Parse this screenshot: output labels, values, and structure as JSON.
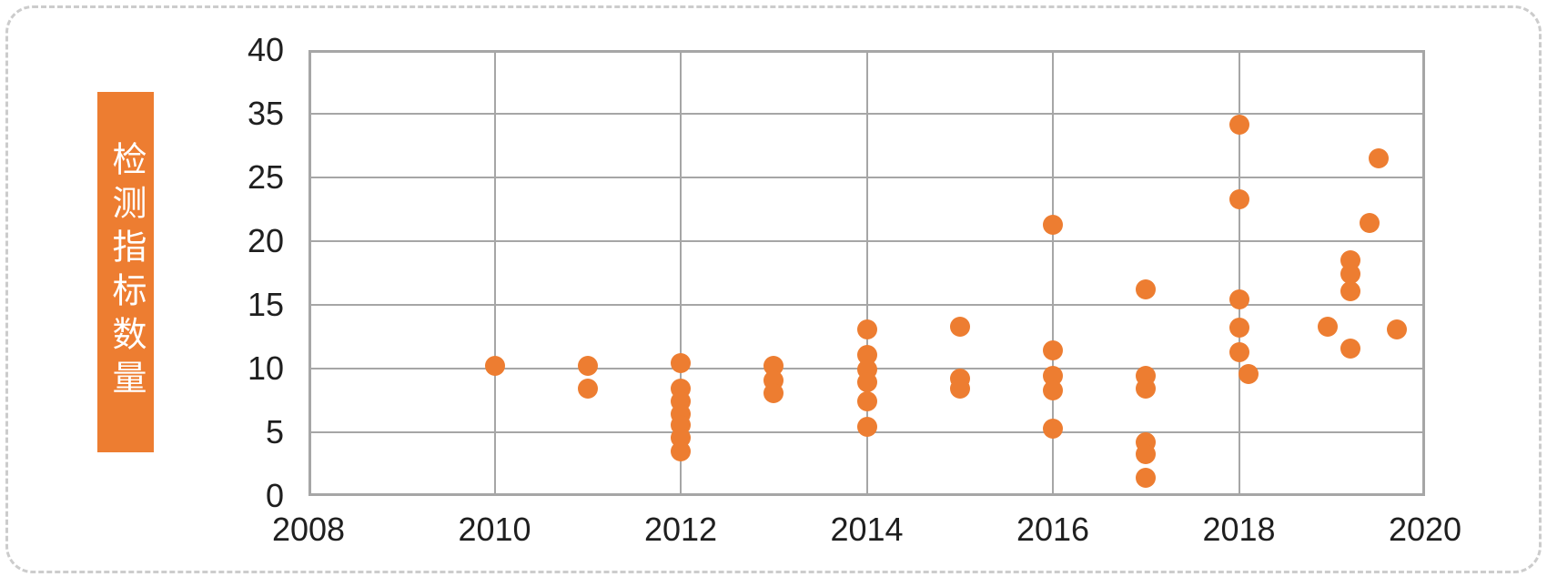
{
  "chart_data": {
    "type": "scatter",
    "title": "",
    "xlabel": "",
    "ylabel": "检测指标数量",
    "legend": null,
    "grid": true,
    "xlim": [
      2008,
      2020
    ],
    "x_tick_labels": [
      "2008",
      "2010",
      "2012",
      "2014",
      "2016",
      "2018",
      "2020"
    ],
    "x_tick_years": [
      2008,
      2010,
      2012,
      2014,
      2016,
      2018,
      2020
    ],
    "y_tick_labels": [
      "40",
      "35",
      "25",
      "20",
      "15",
      "10",
      "5",
      "0"
    ],
    "y_tick_values": [
      40,
      35,
      25,
      20,
      15,
      10,
      5,
      0
    ],
    "y_axis_note": "printed tick labels skip 30; one gridline step spans 25 to 35",
    "marker_color": "#ED7D31",
    "marker_radius_px": 11,
    "gridline_color": "#A6A6A6",
    "points": [
      {
        "x": 2010,
        "y": 10.2
      },
      {
        "x": 2011,
        "y": 10.2
      },
      {
        "x": 2011,
        "y": 8.4
      },
      {
        "x": 2012,
        "y": 10.4
      },
      {
        "x": 2012,
        "y": 8.4
      },
      {
        "x": 2012,
        "y": 7.4
      },
      {
        "x": 2012,
        "y": 6.4
      },
      {
        "x": 2012,
        "y": 5.6
      },
      {
        "x": 2012,
        "y": 4.6
      },
      {
        "x": 2012,
        "y": 3.5
      },
      {
        "x": 2013,
        "y": 10.2
      },
      {
        "x": 2013,
        "y": 9.1
      },
      {
        "x": 2013,
        "y": 8.1
      },
      {
        "x": 2014,
        "y": 13.1
      },
      {
        "x": 2014,
        "y": 11.1
      },
      {
        "x": 2014,
        "y": 9.9
      },
      {
        "x": 2014,
        "y": 8.9
      },
      {
        "x": 2014,
        "y": 7.4
      },
      {
        "x": 2014,
        "y": 5.4
      },
      {
        "x": 2015,
        "y": 13.3
      },
      {
        "x": 2015,
        "y": 9.2
      },
      {
        "x": 2015,
        "y": 8.4
      },
      {
        "x": 2016,
        "y": 21.3
      },
      {
        "x": 2016,
        "y": 11.4
      },
      {
        "x": 2016,
        "y": 9.4
      },
      {
        "x": 2016,
        "y": 8.3
      },
      {
        "x": 2016,
        "y": 5.3
      },
      {
        "x": 2017,
        "y": 16.2
      },
      {
        "x": 2017,
        "y": 9.4
      },
      {
        "x": 2017,
        "y": 8.4
      },
      {
        "x": 2017,
        "y": 4.2
      },
      {
        "x": 2017,
        "y": 3.3
      },
      {
        "x": 2017,
        "y": 1.4
      },
      {
        "x": 2018,
        "y": 33.3
      },
      {
        "x": 2018,
        "y": 23.3
      },
      {
        "x": 2018,
        "y": 15.4
      },
      {
        "x": 2018,
        "y": 13.2
      },
      {
        "x": 2018,
        "y": 11.3
      },
      {
        "x": 2018.1,
        "y": 9.6
      },
      {
        "x": 2018.95,
        "y": 13.3
      },
      {
        "x": 2019.2,
        "y": 18.5
      },
      {
        "x": 2019.2,
        "y": 17.4
      },
      {
        "x": 2019.2,
        "y": 16.1
      },
      {
        "x": 2019.2,
        "y": 11.6
      },
      {
        "x": 2019.4,
        "y": 21.4
      },
      {
        "x": 2019.5,
        "y": 28.0
      },
      {
        "x": 2019.7,
        "y": 13.1
      }
    ]
  },
  "colors": {
    "accent_orange": "#ED7D31",
    "gridline_gray": "#A6A6A6",
    "tick_text": "#1F1F1F",
    "card_border": "#CCCCCC",
    "background": "#FFFFFF",
    "ylabel_text": "#FFFFFF"
  }
}
